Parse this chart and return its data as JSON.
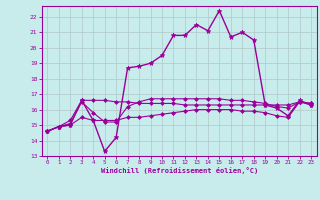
{
  "xlabel": "Windchill (Refroidissement éolien,°C)",
  "background_color": "#c8ecec",
  "line_color": "#990099",
  "grid_color": "#b0c8c8",
  "xlim": [
    -0.5,
    23.5
  ],
  "ylim": [
    13,
    22.7
  ],
  "yticks": [
    13,
    14,
    15,
    16,
    17,
    18,
    19,
    20,
    21,
    22
  ],
  "xticks": [
    0,
    1,
    2,
    3,
    4,
    5,
    6,
    7,
    8,
    9,
    10,
    11,
    12,
    13,
    14,
    15,
    16,
    17,
    18,
    19,
    20,
    21,
    22,
    23
  ],
  "series": [
    {
      "x": [
        0,
        1,
        2,
        3,
        4,
        5,
        6,
        7,
        8,
        9,
        10,
        11,
        12,
        13,
        14,
        15,
        16,
        17,
        18,
        19,
        20,
        21,
        22,
        23
      ],
      "y": [
        14.6,
        14.9,
        15.0,
        16.6,
        15.3,
        13.3,
        14.2,
        18.7,
        18.8,
        19.0,
        19.5,
        20.8,
        20.8,
        21.5,
        21.1,
        22.4,
        20.7,
        21.0,
        20.5,
        16.3,
        16.1,
        15.6,
        16.6,
        16.3
      ],
      "marker": "*",
      "markersize": 3.5,
      "linewidth": 1.0
    },
    {
      "x": [
        0,
        1,
        2,
        3,
        4,
        5,
        6,
        7,
        8,
        9,
        10,
        11,
        12,
        13,
        14,
        15,
        16,
        17,
        18,
        19,
        20,
        21,
        22,
        23
      ],
      "y": [
        14.6,
        14.9,
        15.3,
        16.6,
        16.6,
        16.6,
        16.5,
        16.5,
        16.4,
        16.4,
        16.4,
        16.4,
        16.3,
        16.3,
        16.3,
        16.3,
        16.3,
        16.3,
        16.3,
        16.3,
        16.3,
        16.3,
        16.5,
        16.4
      ],
      "marker": "D",
      "markersize": 2.0,
      "linewidth": 0.8
    },
    {
      "x": [
        0,
        1,
        2,
        3,
        4,
        5,
        6,
        7,
        8,
        9,
        10,
        11,
        12,
        13,
        14,
        15,
        16,
        17,
        18,
        19,
        20,
        21,
        22,
        23
      ],
      "y": [
        14.6,
        14.9,
        15.0,
        15.5,
        15.3,
        15.3,
        15.3,
        15.5,
        15.5,
        15.6,
        15.7,
        15.8,
        15.9,
        16.0,
        16.0,
        16.0,
        16.0,
        15.9,
        15.9,
        15.8,
        15.6,
        15.5,
        16.5,
        16.3
      ],
      "marker": "D",
      "markersize": 2.0,
      "linewidth": 0.8
    },
    {
      "x": [
        0,
        1,
        2,
        3,
        4,
        5,
        6,
        7,
        8,
        9,
        10,
        11,
        12,
        13,
        14,
        15,
        16,
        17,
        18,
        19,
        20,
        21,
        22,
        23
      ],
      "y": [
        14.6,
        14.9,
        15.1,
        16.5,
        15.8,
        15.2,
        15.2,
        16.2,
        16.5,
        16.7,
        16.7,
        16.7,
        16.7,
        16.7,
        16.7,
        16.7,
        16.6,
        16.6,
        16.5,
        16.4,
        16.2,
        16.1,
        16.5,
        16.4
      ],
      "marker": "D",
      "markersize": 2.0,
      "linewidth": 0.8
    }
  ]
}
